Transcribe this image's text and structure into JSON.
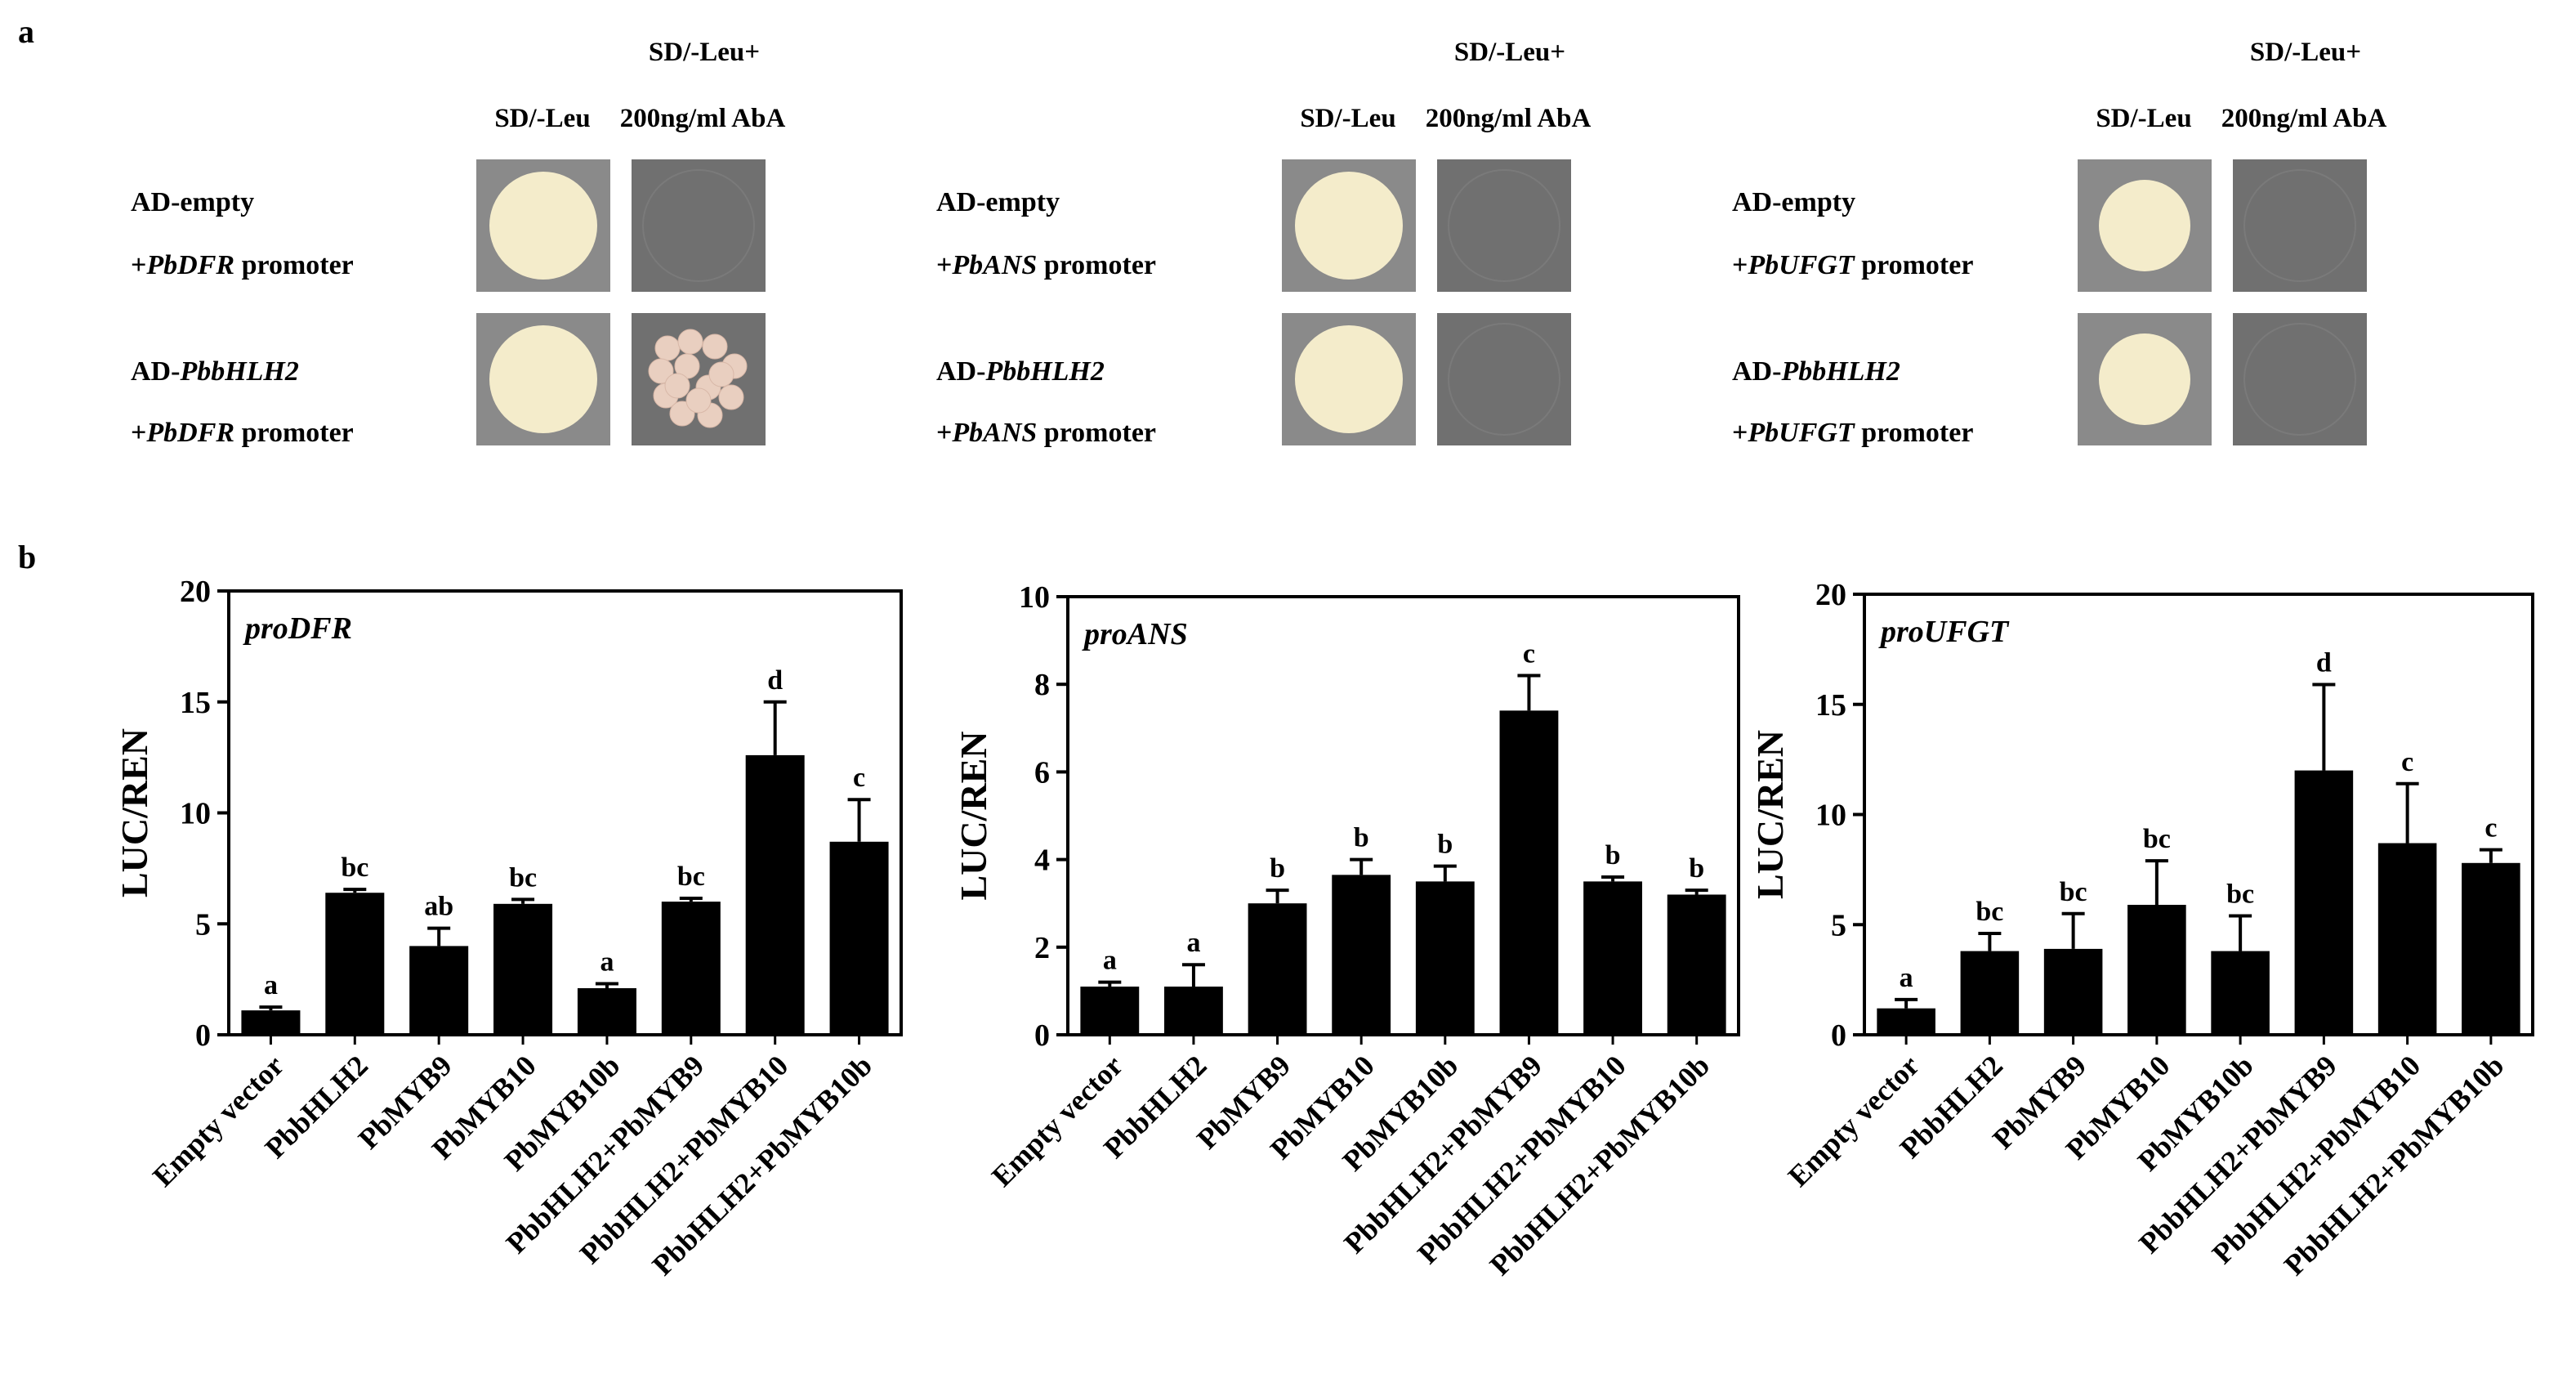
{
  "panel_labels": {
    "a": "a",
    "b": "b"
  },
  "yeast": {
    "col_sd": "SD/-Leu",
    "col_aba_line1": "SD/-Leu+",
    "col_aba_line2": "200ng/ml AbA",
    "word_promoter": " promoter",
    "word_plus": "+",
    "ad_empty": "AD-empty",
    "ad_prefix": "AD-",
    "ad_gene": "PbbHLH2",
    "groups": [
      {
        "promoter_gene": "PbDFR",
        "growth": [
          "full",
          "none",
          "full",
          "colonies"
        ]
      },
      {
        "promoter_gene": "PbANS",
        "growth": [
          "full",
          "none",
          "full",
          "none"
        ]
      },
      {
        "promoter_gene": "PbUFGT",
        "growth": [
          "full",
          "none",
          "full",
          "none"
        ]
      }
    ],
    "colors": {
      "plate_dark": "#707070",
      "plate_mid": "#8a8a8a",
      "colony": "#f4eccb",
      "colony_pink": "#e9cfc0"
    }
  },
  "chart_data": [
    {
      "type": "bar",
      "title": "proDFR",
      "ylabel": "LUC/REN",
      "ylim": [
        0,
        20
      ],
      "yticks": [
        0,
        5,
        10,
        15,
        20
      ],
      "categories": [
        "Empty vector",
        "PbbHLH2",
        "PbMYB9",
        "PbMYB10",
        "PbMYB10b",
        "PbbHLH2+PbMYB9",
        "PbbHLH2+PbMYB10",
        "PbbHLH2+PbMYB10b"
      ],
      "values": [
        1.1,
        6.4,
        4.0,
        5.9,
        2.1,
        6.0,
        12.6,
        8.7
      ],
      "errors": [
        0.15,
        0.15,
        0.8,
        0.2,
        0.2,
        0.15,
        2.4,
        1.9
      ],
      "letters": [
        "a",
        "bc",
        "ab",
        "bc",
        "a",
        "bc",
        "d",
        "c"
      ]
    },
    {
      "type": "bar",
      "title": "proANS",
      "ylabel": "LUC/REN",
      "ylim": [
        0,
        10
      ],
      "yticks": [
        0,
        2,
        4,
        6,
        8,
        10
      ],
      "categories": [
        "Empty vector",
        "PbbHLH2",
        "PbMYB9",
        "PbMYB10",
        "PbMYB10b",
        "PbbHLH2+PbMYB9",
        "PbbHLH2+PbMYB10",
        "PbbHLH2+PbMYB10b"
      ],
      "values": [
        1.1,
        1.1,
        3.0,
        3.65,
        3.5,
        7.4,
        3.5,
        3.2
      ],
      "errors": [
        0.1,
        0.5,
        0.3,
        0.35,
        0.35,
        0.8,
        0.1,
        0.1
      ],
      "letters": [
        "a",
        "a",
        "b",
        "b",
        "b",
        "c",
        "b",
        "b"
      ]
    },
    {
      "type": "bar",
      "title": "proUFGT",
      "ylabel": "LUC/REN",
      "ylim": [
        0,
        20
      ],
      "yticks": [
        0,
        5,
        10,
        15,
        20
      ],
      "categories": [
        "Empty vector",
        "PbbHLH2",
        "PbMYB9",
        "PbMYB10",
        "PbMYB10b",
        "PbbHLH2+PbMYB9",
        "PbbHLH2+PbMYB10",
        "PbbHLH2+PbMYB10b"
      ],
      "values": [
        1.2,
        3.8,
        3.9,
        5.9,
        3.8,
        12.0,
        8.7,
        7.8
      ],
      "errors": [
        0.4,
        0.8,
        1.6,
        2.0,
        1.6,
        3.9,
        2.7,
        0.6
      ],
      "letters": [
        "a",
        "bc",
        "bc",
        "bc",
        "bc",
        "d",
        "c",
        "c"
      ]
    }
  ]
}
